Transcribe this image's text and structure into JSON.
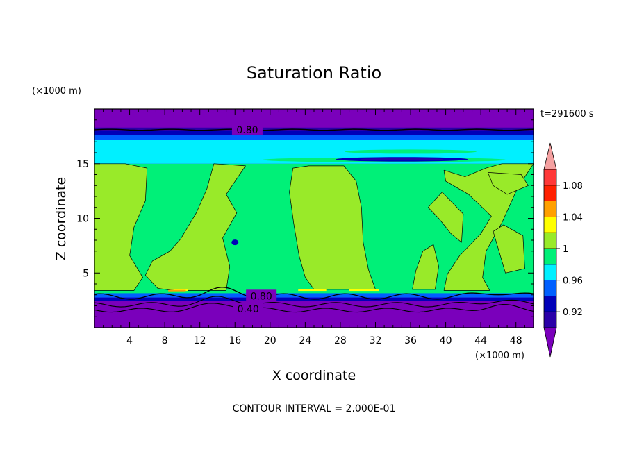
{
  "chart_data": {
    "type": "heatmap",
    "title": "Saturation Ratio",
    "xlabel": "X coordinate",
    "ylabel": "Z coordinate",
    "x_unit": "(×1000 m)",
    "y_unit": "(×1000 m)",
    "time_label": "t=291600 s",
    "footer": "CONTOUR INTERVAL = 2.000E-01",
    "xlim": [
      0,
      50
    ],
    "ylim": [
      0,
      20
    ],
    "xticks": [
      4,
      8,
      12,
      16,
      20,
      24,
      28,
      32,
      36,
      40,
      44,
      48
    ],
    "xtick_labels": [
      "4",
      "8",
      "12",
      "16",
      "20",
      "24",
      "28",
      "32",
      "36",
      "40",
      "44",
      "48"
    ],
    "yticks": [
      5,
      10,
      15
    ],
    "ytick_labels": [
      "5",
      "10",
      "15"
    ],
    "contour_labels": [
      {
        "text": "0.80",
        "x": 17.4,
        "z": 18.1
      },
      {
        "text": "0.80",
        "x": 19.0,
        "z": 2.9
      },
      {
        "text": "0.40",
        "x": 17.5,
        "z": 1.7
      }
    ],
    "colorbar": {
      "levels": [
        0.9,
        0.92,
        0.94,
        0.96,
        0.98,
        1.0,
        1.02,
        1.04,
        1.06,
        1.08,
        1.1
      ],
      "labels": [
        "0.92",
        "0.96",
        "1",
        "1.04",
        "1.08"
      ],
      "label_levels": [
        0.92,
        0.96,
        1.0,
        1.04,
        1.08
      ],
      "colors": [
        "#7a00bb",
        "#2a00a8",
        "#0000b8",
        "#0060ff",
        "#00f0ff",
        "#00f078",
        "#99ea29",
        "#ffff00",
        "#ffa000",
        "#ff2000",
        "#ff3838",
        "#f4a0a0"
      ]
    },
    "colors": {
      "below_range": "#7a00bb",
      "layer_0.92": "#2a00a8",
      "layer_0.94": "#0000b8",
      "layer_0.96": "#0060ff",
      "layer_0.98": "#00f0ff",
      "layer_1.00": "#00f078",
      "layer_1.02": "#99ea29",
      "layer_1.04": "#ffff00",
      "layer_1.06": "#ffa000"
    }
  }
}
